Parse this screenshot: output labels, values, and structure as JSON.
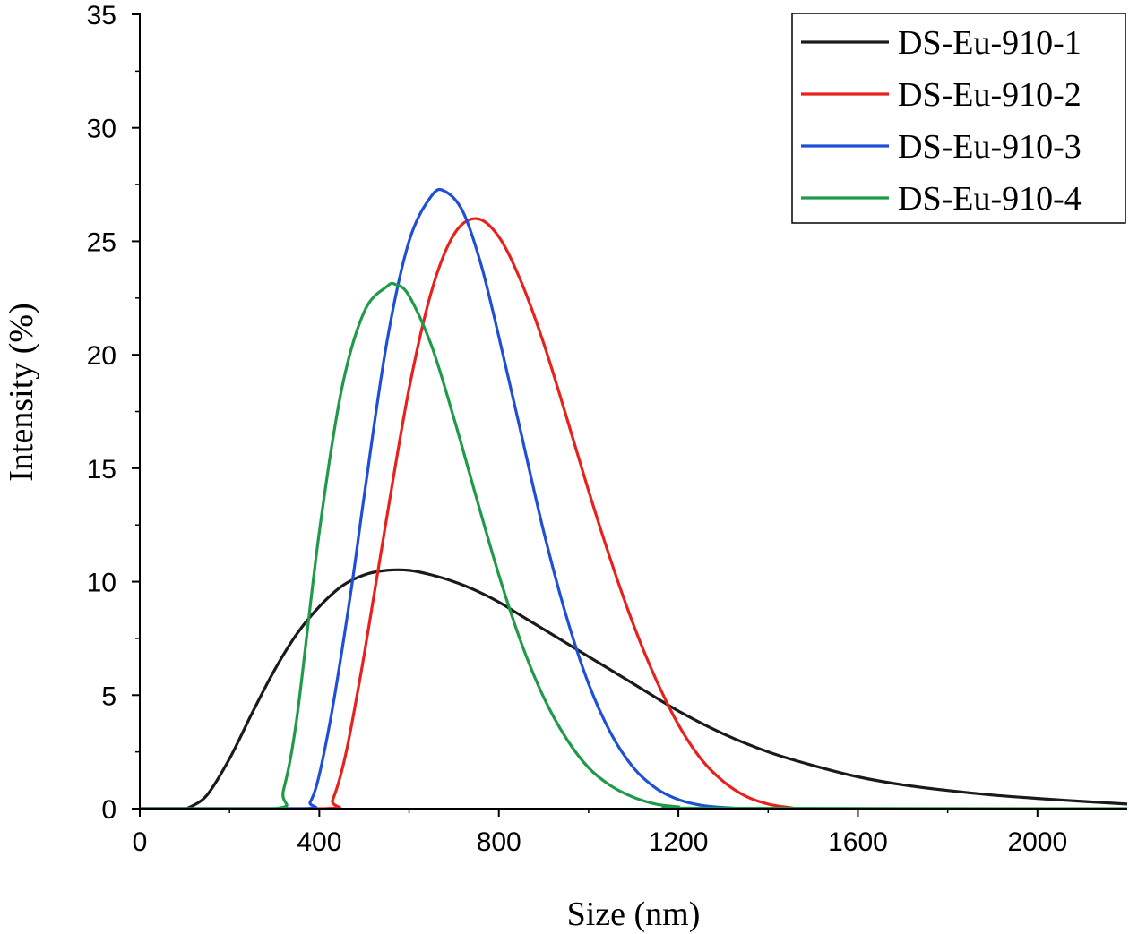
{
  "chart_data": {
    "type": "line",
    "title": "",
    "xlabel": "Size (nm)",
    "ylabel": "Intensity (%)",
    "xlim": [
      0,
      2200
    ],
    "ylim": [
      0,
      35
    ],
    "x_ticks": [
      0,
      400,
      800,
      1200,
      1600,
      2000
    ],
    "y_ticks": [
      0,
      5,
      10,
      15,
      20,
      25,
      30,
      35
    ],
    "grid": false,
    "legend_position": "top-right",
    "series": [
      {
        "name": "DS-Eu-910-1",
        "color": "#1a1a1a",
        "x": [
          0,
          100,
          110,
          150,
          200,
          250,
          300,
          350,
          400,
          450,
          500,
          550,
          600,
          650,
          700,
          750,
          800,
          850,
          900,
          1000,
          1100,
          1200,
          1300,
          1400,
          1500,
          1600,
          1700,
          1800,
          1900,
          2000,
          2100,
          2200
        ],
        "y": [
          0,
          0,
          0.05,
          0.6,
          2.2,
          4.2,
          6.1,
          7.7,
          8.9,
          9.8,
          10.3,
          10.5,
          10.5,
          10.3,
          10.0,
          9.6,
          9.1,
          8.5,
          7.9,
          6.7,
          5.5,
          4.3,
          3.3,
          2.5,
          1.9,
          1.4,
          1.05,
          0.8,
          0.6,
          0.45,
          0.32,
          0.2
        ]
      },
      {
        "name": "DS-Eu-910-2",
        "color": "#e8211c",
        "x": [
          0,
          410,
          430,
          460,
          500,
          550,
          600,
          650,
          700,
          750,
          800,
          850,
          900,
          950,
          1000,
          1050,
          1100,
          1150,
          1200,
          1250,
          1300,
          1350,
          1400,
          1450,
          1460
        ],
        "y": [
          0,
          0,
          0.4,
          2.5,
          6.8,
          12.8,
          18.5,
          22.8,
          25.3,
          26.0,
          25.2,
          23.2,
          20.5,
          17.3,
          14.0,
          10.9,
          8.1,
          5.7,
          3.7,
          2.2,
          1.2,
          0.55,
          0.2,
          0.04,
          0
        ]
      },
      {
        "name": "DS-Eu-910-3",
        "color": "#1f4fd6",
        "x": [
          0,
          360,
          380,
          400,
          430,
          470,
          500,
          550,
          600,
          650,
          680,
          720,
          760,
          800,
          850,
          900,
          950,
          1000,
          1050,
          1100,
          1150,
          1200,
          1250,
          1300,
          1350
        ],
        "y": [
          0,
          0,
          0.3,
          1.5,
          4.5,
          9.5,
          13.8,
          20.5,
          25.0,
          27.0,
          27.2,
          26.3,
          24.0,
          20.8,
          16.5,
          12.2,
          8.5,
          5.5,
          3.3,
          1.8,
          0.9,
          0.4,
          0.15,
          0.05,
          0
        ]
      },
      {
        "name": "DS-Eu-910-4",
        "color": "#1e9a48",
        "x": [
          0,
          300,
          320,
          350,
          400,
          450,
          500,
          550,
          570,
          600,
          650,
          700,
          750,
          800,
          850,
          900,
          950,
          1000,
          1050,
          1100,
          1150,
          1200,
          1250,
          2200
        ],
        "y": [
          0,
          0,
          0.8,
          4.0,
          12.2,
          18.5,
          21.9,
          23.0,
          23.1,
          22.6,
          20.4,
          17.2,
          13.7,
          10.3,
          7.3,
          4.9,
          3.1,
          1.8,
          1.0,
          0.5,
          0.2,
          0.08,
          0.02,
          0
        ]
      }
    ]
  }
}
